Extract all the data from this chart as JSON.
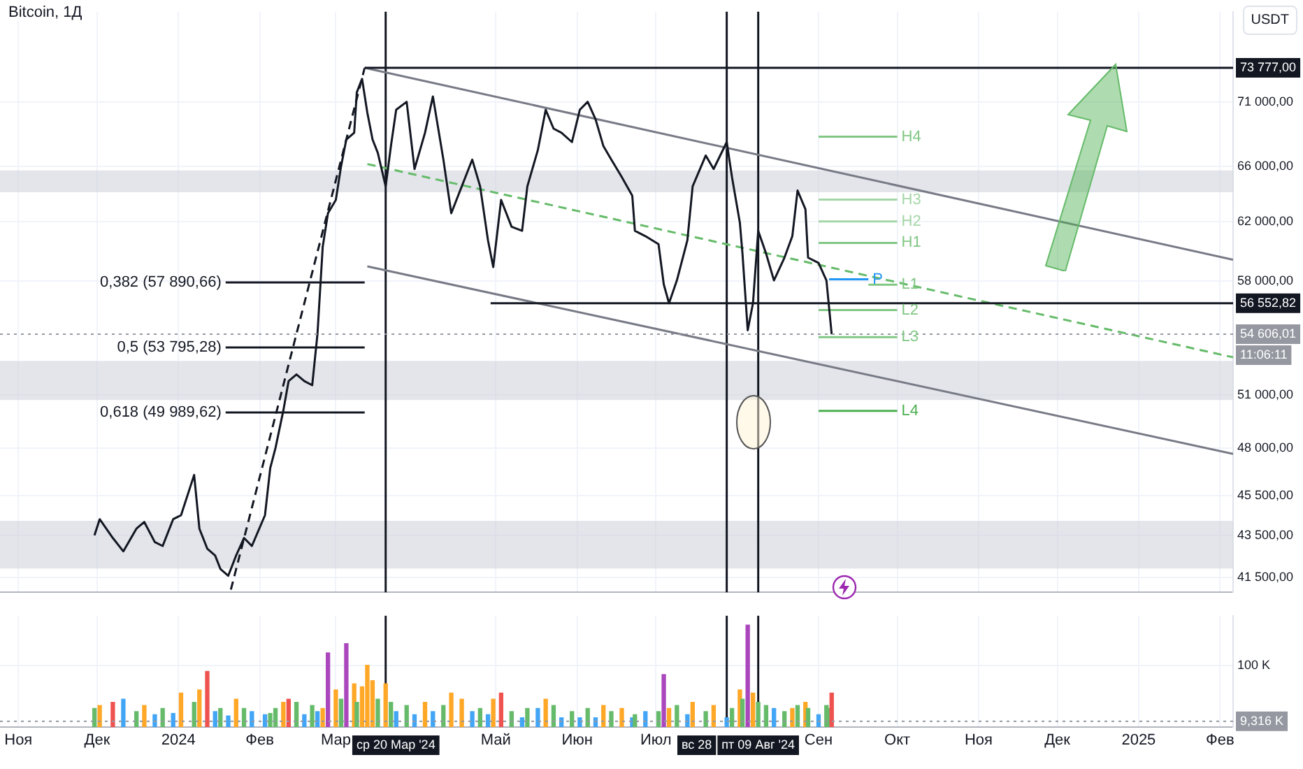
{
  "chart_data": [
    {
      "type": "line",
      "title": "Bitcoin, 1Д",
      "ylabel": "USDT",
      "log": true,
      "grid": true,
      "legend": false,
      "marker": "none",
      "tick_labels": "y",
      "xlim": [
        "2023-10-25",
        "2025-02-06"
      ],
      "ylim": [
        40800,
        78600
      ],
      "xticks": [
        {
          "value": "2023-11-01",
          "label": null
        },
        {
          "value": "2023-12-01",
          "label": null
        },
        {
          "value": "2024-01-01",
          "label": null
        },
        {
          "value": "2024-02-01",
          "label": null
        },
        {
          "value": "2024-03-01",
          "label": null
        },
        {
          "value": "2024-05-01",
          "label": null
        },
        {
          "value": "2024-06-01",
          "label": null
        },
        {
          "value": "2024-07-01",
          "label": null
        },
        {
          "value": "2024-09-01",
          "label": null
        },
        {
          "value": "2024-10-01",
          "label": null
        },
        {
          "value": "2024-11-01",
          "label": null
        },
        {
          "value": "2024-12-01",
          "label": null
        },
        {
          "value": "2025-01-01",
          "label": null
        },
        {
          "value": "2025-02-01",
          "label": null
        }
      ],
      "yticks": [
        {
          "value": 41500,
          "label": "41 500,00"
        },
        {
          "value": 43500,
          "label": "43 500,00"
        },
        {
          "value": 45500,
          "label": "45 500,00"
        },
        {
          "value": 48000,
          "label": "48 000,00"
        },
        {
          "value": 51000,
          "label": "51 000,00"
        },
        {
          "value": 58000,
          "label": "58 000,00"
        },
        {
          "value": 62000,
          "label": "62 000,00"
        },
        {
          "value": 66000,
          "label": "66 000,00"
        },
        {
          "value": 71000,
          "label": "71 000,00"
        }
      ],
      "series": [
        {
          "color": "#131722",
          "x": [
            "2023-11-30",
            "2023-12-02",
            "2023-12-07",
            "2023-12-11",
            "2023-12-16",
            "2023-12-19",
            "2023-12-23",
            "2023-12-26",
            "2023-12-30",
            "2024-01-02",
            "2024-01-07",
            "2024-01-09",
            "2024-01-12",
            "2024-01-15",
            "2024-01-17",
            "2024-01-20",
            "2024-01-23",
            "2024-01-26",
            "2024-01-29",
            "2024-02-03",
            "2024-02-05",
            "2024-02-07",
            "2024-02-10",
            "2024-02-12",
            "2024-02-15",
            "2024-02-18",
            "2024-02-21",
            "2024-02-23",
            "2024-02-25",
            "2024-02-27",
            "2024-03-01",
            "2024-03-03",
            "2024-03-05",
            "2024-03-08",
            "2024-03-09",
            "2024-03-11",
            "2024-03-13",
            "2024-03-15",
            "2024-03-17",
            "2024-03-20",
            "2024-03-22",
            "2024-03-24",
            "2024-03-28",
            "2024-03-31",
            "2024-04-04",
            "2024-04-07",
            "2024-04-11",
            "2024-04-14",
            "2024-04-18",
            "2024-04-22",
            "2024-04-25",
            "2024-04-28",
            "2024-04-30",
            "2024-05-03",
            "2024-05-07",
            "2024-05-11",
            "2024-05-13",
            "2024-05-17",
            "2024-05-20",
            "2024-05-23",
            "2024-05-26",
            "2024-05-30",
            "2024-06-02",
            "2024-06-05",
            "2024-06-08",
            "2024-06-11",
            "2024-06-14",
            "2024-06-18",
            "2024-06-22",
            "2024-06-23",
            "2024-06-27",
            "2024-07-02",
            "2024-07-04",
            "2024-07-06",
            "2024-07-09",
            "2024-07-13",
            "2024-07-15",
            "2024-07-20",
            "2024-07-23",
            "2024-07-28",
            "2024-07-30",
            "2024-08-02",
            "2024-08-03",
            "2024-08-05",
            "2024-08-07",
            "2024-08-09",
            "2024-08-12",
            "2024-08-15",
            "2024-08-19",
            "2024-08-22",
            "2024-08-24",
            "2024-08-27",
            "2024-08-28",
            "2024-09-01",
            "2024-09-04",
            "2024-09-05",
            "2024-09-06"
          ],
          "values": [
            43510,
            44310,
            43380,
            42730,
            43840,
            44170,
            43180,
            42990,
            44310,
            44510,
            46580,
            43840,
            42860,
            42530,
            41890,
            41570,
            42530,
            43380,
            42990,
            44510,
            46940,
            48020,
            50100,
            51790,
            52180,
            51790,
            51550,
            54610,
            60260,
            62600,
            63550,
            66010,
            68040,
            68560,
            71760,
            72860,
            70140,
            68040,
            67020,
            64530,
            67530,
            70360,
            71000,
            65810,
            68560,
            71430,
            66510,
            62600,
            64530,
            66510,
            64530,
            60720,
            58910,
            63550,
            61650,
            61370,
            64530,
            67230,
            70360,
            68880,
            68560,
            67840,
            70360,
            71000,
            69610,
            67530,
            66510,
            65210,
            63850,
            61370,
            61000,
            60450,
            57770,
            56550,
            58030,
            60720,
            64530,
            66820,
            65810,
            67840,
            65210,
            61940,
            59810,
            54850,
            56550,
            61370,
            59810,
            58030,
            59540,
            61000,
            64230,
            62880,
            59540,
            59180,
            58030,
            56290,
            54606.01
          ]
        },
        {
          "color": "#131722",
          "x": [
            "2024-03-12",
            "2025-02-06"
          ],
          "values": [
            73777,
            73777
          ],
          "value_labels": [
            null,
            "73 777,00"
          ]
        },
        {
          "color": "#131722",
          "x": [
            "2024-04-29",
            "2025-02-06"
          ],
          "values": [
            56552.82,
            56552.82
          ],
          "value_labels": [
            null,
            "56 552,82"
          ]
        },
        {
          "color": "#787b86",
          "x": [
            "2024-03-12",
            "2025-02-06"
          ],
          "values": [
            73777,
            59400
          ]
        },
        {
          "color": "#787b86",
          "x": [
            "2024-03-13",
            "2025-02-06"
          ],
          "values": [
            58960,
            47700
          ]
        },
        {
          "color": "#66bb6a",
          "line_style": "dashed",
          "x": [
            "2024-03-13",
            "2025-02-06"
          ],
          "values": [
            66180,
            53200
          ]
        },
        {
          "color": "#131722",
          "line_style": "dashed",
          "x": [
            "2024-01-21",
            "2024-03-12"
          ],
          "values": [
            40920,
            73777
          ]
        },
        {
          "name": "0,382 (57 890,66)",
          "color": "#131722",
          "x": [
            "2024-01-19",
            "2024-03-12"
          ],
          "values": [
            57890.66,
            57890.66
          ]
        },
        {
          "name": "0,5 (53 795,28)",
          "color": "#131722",
          "x": [
            "2024-01-19",
            "2024-03-12"
          ],
          "values": [
            53795.28,
            53795.28
          ]
        },
        {
          "name": "0,618 (49 989,62)",
          "color": "#131722",
          "x": [
            "2024-01-19",
            "2024-03-12"
          ],
          "values": [
            49989.62,
            49989.62
          ]
        },
        {
          "name": "H4",
          "color": "#81c784",
          "x": [
            "2024-09-01",
            "2024-10-01"
          ],
          "values": [
            68250,
            68250
          ]
        },
        {
          "name": "H3",
          "color": "#a5d6a7",
          "x": [
            "2024-09-01",
            "2024-10-01"
          ],
          "values": [
            63570,
            63570
          ]
        },
        {
          "name": "H2",
          "color": "#a5d6a7",
          "x": [
            "2024-09-01",
            "2024-10-01"
          ],
          "values": [
            62030,
            62030
          ]
        },
        {
          "name": "H1",
          "color": "#81c784",
          "x": [
            "2024-09-01",
            "2024-10-01"
          ],
          "values": [
            60540,
            60540
          ]
        },
        {
          "name": "P",
          "color": "#2196f3",
          "x": [
            "2024-09-05",
            "2024-09-20"
          ],
          "values": [
            58100,
            58100
          ]
        },
        {
          "name": "L1",
          "color": "#81c784",
          "x": [
            "2024-09-20",
            "2024-10-01"
          ],
          "values": [
            57750,
            57750
          ]
        },
        {
          "name": "L2",
          "color": "#81c784",
          "x": [
            "2024-09-01",
            "2024-10-01"
          ],
          "values": [
            56120,
            56120
          ]
        },
        {
          "name": "L3",
          "color": "#81c784",
          "x": [
            "2024-09-01",
            "2024-10-01"
          ],
          "values": [
            54430,
            54430
          ]
        },
        {
          "name": "L4",
          "color": "#4caf50",
          "x": [
            "2024-09-01",
            "2024-10-01"
          ],
          "values": [
            50080,
            50080
          ]
        }
      ],
      "bands": [
        {
          "axis": "y",
          "from": 64100,
          "to": 65700,
          "color": "#d1d4dc"
        },
        {
          "axis": "y",
          "from": 50690,
          "to": 52980,
          "color": "#d1d4dc"
        },
        {
          "axis": "y",
          "from": 41910,
          "to": 44230,
          "color": "#d1d4dc"
        }
      ],
      "ref_lines": [
        {
          "axis": "y",
          "value": 54606.01,
          "label": "54 606,01",
          "color": "#9598a1",
          "line_style": "dotted"
        },
        {
          "axis": "x",
          "value": "2024-03-20",
          "color": "#131722"
        },
        {
          "axis": "x",
          "value": "2024-07-28",
          "color": "#131722"
        },
        {
          "axis": "x",
          "value": "2024-08-09",
          "color": "#131722"
        }
      ],
      "annotations": [
        "11:06:11"
      ]
    },
    {
      "type": "bar",
      "grid": true,
      "legend": false,
      "xlim": [
        "2023-10-25",
        "2025-02-06"
      ],
      "ylim": [
        0,
        180
      ],
      "xticks": [
        {
          "value": "2023-11-01",
          "label": "Ноя"
        },
        {
          "value": "2023-12-01",
          "label": "Дек"
        },
        {
          "value": "2024-01-01",
          "label": "2024"
        },
        {
          "value": "2024-02-01",
          "label": "Фев"
        },
        {
          "value": "2024-03-01",
          "label": "Мар"
        },
        {
          "value": "2024-05-01",
          "label": "Май"
        },
        {
          "value": "2024-06-01",
          "label": "Июн"
        },
        {
          "value": "2024-07-01",
          "label": "Июл"
        },
        {
          "value": "2024-09-01",
          "label": "Сен"
        },
        {
          "value": "2024-10-01",
          "label": "Окт"
        },
        {
          "value": "2024-11-01",
          "label": "Ноя"
        },
        {
          "value": "2024-12-01",
          "label": "Дек"
        },
        {
          "value": "2025-01-01",
          "label": "2025"
        },
        {
          "value": "2025-02-01",
          "label": "Фев"
        }
      ],
      "yticks": [
        {
          "value": 100,
          "label": "100 K"
        }
      ],
      "x": [
        "2023-11-30",
        "2023-12-02",
        "2023-12-07",
        "2023-12-11",
        "2023-12-16",
        "2023-12-19",
        "2023-12-23",
        "2023-12-26",
        "2023-12-30",
        "2024-01-02",
        "2024-01-07",
        "2024-01-09",
        "2024-01-12",
        "2024-01-15",
        "2024-01-17",
        "2024-01-20",
        "2024-01-23",
        "2024-01-26",
        "2024-01-29",
        "2024-02-03",
        "2024-02-05",
        "2024-02-07",
        "2024-02-10",
        "2024-02-12",
        "2024-02-15",
        "2024-02-18",
        "2024-02-21",
        "2024-02-23",
        "2024-02-25",
        "2024-02-27",
        "2024-03-01",
        "2024-03-03",
        "2024-03-05",
        "2024-03-08",
        "2024-03-09",
        "2024-03-11",
        "2024-03-13",
        "2024-03-15",
        "2024-03-17",
        "2024-03-20",
        "2024-03-22",
        "2024-03-24",
        "2024-03-28",
        "2024-03-31",
        "2024-04-04",
        "2024-04-07",
        "2024-04-11",
        "2024-04-14",
        "2024-04-18",
        "2024-04-22",
        "2024-04-25",
        "2024-04-28",
        "2024-04-30",
        "2024-05-03",
        "2024-05-07",
        "2024-05-11",
        "2024-05-13",
        "2024-05-17",
        "2024-05-20",
        "2024-05-23",
        "2024-05-26",
        "2024-05-30",
        "2024-06-02",
        "2024-06-05",
        "2024-06-08",
        "2024-06-11",
        "2024-06-14",
        "2024-06-18",
        "2024-06-22",
        "2024-06-23",
        "2024-06-27",
        "2024-07-02",
        "2024-07-04",
        "2024-07-06",
        "2024-07-09",
        "2024-07-13",
        "2024-07-15",
        "2024-07-20",
        "2024-07-23",
        "2024-07-28",
        "2024-07-30",
        "2024-08-02",
        "2024-08-03",
        "2024-08-05",
        "2024-08-07",
        "2024-08-09",
        "2024-08-12",
        "2024-08-15",
        "2024-08-19",
        "2024-08-22",
        "2024-08-24",
        "2024-08-27",
        "2024-08-28",
        "2024-09-01",
        "2024-09-04",
        "2024-09-05",
        "2024-09-06"
      ],
      "values": [
        30,
        35,
        40,
        45,
        25,
        35,
        20,
        30,
        22,
        55,
        40,
        60,
        90,
        25,
        30,
        18,
        45,
        30,
        25,
        20,
        22,
        30,
        40,
        45,
        40,
        20,
        35,
        25,
        30,
        120,
        60,
        45,
        135,
        70,
        40,
        65,
        100,
        75,
        45,
        70,
        40,
        25,
        35,
        20,
        40,
        25,
        35,
        55,
        45,
        25,
        30,
        20,
        45,
        55,
        25,
        15,
        30,
        30,
        45,
        35,
        15,
        25,
        15,
        30,
        15,
        35,
        25,
        30,
        15,
        20,
        25,
        25,
        85,
        30,
        35,
        20,
        40,
        25,
        35,
        15,
        30,
        60,
        45,
        165,
        55,
        40,
        35,
        30,
        25,
        30,
        35,
        40,
        30,
        20,
        35,
        30,
        55
      ],
      "colors": [
        "#66bb6a",
        "#ffa726",
        "#ef5350",
        "#42a5f5",
        "#66bb6a",
        "#ffa726",
        "#42a5f5",
        "#66bb6a",
        "#42a5f5",
        "#ffa726",
        "#66bb6a",
        "#ffa726",
        "#ef5350",
        "#42a5f5",
        "#66bb6a",
        "#42a5f5",
        "#ffa726",
        "#66bb6a",
        "#42a5f5",
        "#42a5f5",
        "#66bb6a",
        "#66bb6a",
        "#ffa726",
        "#ef5350",
        "#66bb6a",
        "#42a5f5",
        "#66bb6a",
        "#42a5f5",
        "#ffa726",
        "#ab47bc",
        "#ffa726",
        "#66bb6a",
        "#ab47bc",
        "#ffa726",
        "#66bb6a",
        "#ffa726",
        "#ffa726",
        "#ffa726",
        "#66bb6a",
        "#ffa726",
        "#66bb6a",
        "#42a5f5",
        "#66bb6a",
        "#42a5f5",
        "#ffa726",
        "#42a5f5",
        "#66bb6a",
        "#ffa726",
        "#ffa726",
        "#42a5f5",
        "#66bb6a",
        "#42a5f5",
        "#ffa726",
        "#ef5350",
        "#66bb6a",
        "#42a5f5",
        "#66bb6a",
        "#42a5f5",
        "#ffa726",
        "#66bb6a",
        "#42a5f5",
        "#66bb6a",
        "#42a5f5",
        "#66bb6a",
        "#42a5f5",
        "#ffa726",
        "#66bb6a",
        "#ffa726",
        "#42a5f5",
        "#66bb6a",
        "#42a5f5",
        "#66bb6a",
        "#ab47bc",
        "#ffa726",
        "#66bb6a",
        "#42a5f5",
        "#ffa726",
        "#66bb6a",
        "#ffa726",
        "#42a5f5",
        "#66bb6a",
        "#ffa726",
        "#66bb6a",
        "#ab47bc",
        "#ffa726",
        "#66bb6a",
        "#66bb6a",
        "#42a5f5",
        "#66bb6a",
        "#ffa726",
        "#66bb6a",
        "#ffa726",
        "#66bb6a",
        "#42a5f5",
        "#66bb6a",
        "#66bb6a",
        "#ef5350"
      ],
      "ref_lines": [
        {
          "axis": "y",
          "value": 9.316,
          "label": "9,316 K",
          "color": "#9598a1",
          "line_style": "dotted"
        },
        {
          "axis": "x",
          "value": "2024-03-20",
          "label": "ср 20 Мар '24",
          "color": "#131722"
        },
        {
          "axis": "x",
          "value": "2024-07-28",
          "label": "вс 28",
          "color": "#131722"
        },
        {
          "axis": "x",
          "value": "2024-08-09",
          "label": "пт 09 Авг '24",
          "color": "#131722"
        }
      ]
    }
  ]
}
